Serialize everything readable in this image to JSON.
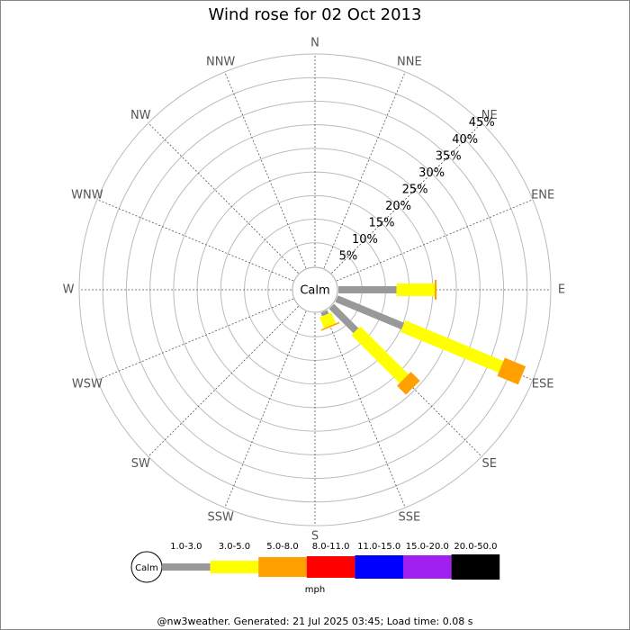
{
  "chart_data": {
    "type": "rose",
    "title": "Wind rose for 02 Oct 2013",
    "directions": [
      "N",
      "NNE",
      "NE",
      "ENE",
      "E",
      "ESE",
      "SE",
      "SSE",
      "S",
      "SSW",
      "SW",
      "WSW",
      "W",
      "WNW",
      "NW",
      "NNW"
    ],
    "center_label": "Calm",
    "unit": "mph",
    "footer": "@nw3weather. Generated: 21 Jul 2025 03:45; Load time: 0.08 s",
    "rlim": [
      0,
      45
    ],
    "rticks": [
      {
        "value": 5,
        "label": "5%"
      },
      {
        "value": 10,
        "label": "10%"
      },
      {
        "value": 15,
        "label": "15%"
      },
      {
        "value": 20,
        "label": "20%"
      },
      {
        "value": 25,
        "label": "25%"
      },
      {
        "value": 30,
        "label": "30%"
      },
      {
        "value": 35,
        "label": "35%"
      },
      {
        "value": 40,
        "label": "40%"
      },
      {
        "value": 45,
        "label": "45%"
      }
    ],
    "grid": true,
    "series": [
      {
        "name": "1.0-3.0",
        "color": "#999999",
        "values": [
          0,
          0,
          0,
          0,
          12.3,
          15.2,
          7.3,
          0.8,
          0,
          0,
          0,
          0,
          0,
          0,
          0,
          0
        ]
      },
      {
        "name": "3.0-5.0",
        "color": "#ffff00",
        "values": [
          0,
          0,
          0,
          0,
          8.1,
          22.5,
          14.4,
          2.5,
          0,
          0,
          0,
          0,
          0,
          0,
          0,
          0
        ]
      },
      {
        "name": "5.0-8.0",
        "color": "#ffa000",
        "values": [
          0,
          0,
          0,
          0,
          0.4,
          4.8,
          2.7,
          0.3,
          0,
          0,
          0,
          0,
          0,
          0,
          0,
          0
        ]
      },
      {
        "name": "8.0-11.0",
        "color": "#ff0000",
        "values": [
          0,
          0,
          0,
          0,
          0,
          0,
          0,
          0,
          0,
          0,
          0,
          0,
          0,
          0,
          0,
          0
        ]
      },
      {
        "name": "11.0-15.0",
        "color": "#0000ff",
        "values": [
          0,
          0,
          0,
          0,
          0,
          0,
          0,
          0,
          0,
          0,
          0,
          0,
          0,
          0,
          0,
          0
        ]
      },
      {
        "name": "15.0-20.0",
        "color": "#a020f0",
        "values": [
          0,
          0,
          0,
          0,
          0,
          0,
          0,
          0,
          0,
          0,
          0,
          0,
          0,
          0,
          0,
          0
        ]
      },
      {
        "name": "20.0-50.0",
        "color": "#000000",
        "values": [
          0,
          0,
          0,
          0,
          0,
          0,
          0,
          0,
          0,
          0,
          0,
          0,
          0,
          0,
          0,
          0
        ]
      }
    ]
  }
}
